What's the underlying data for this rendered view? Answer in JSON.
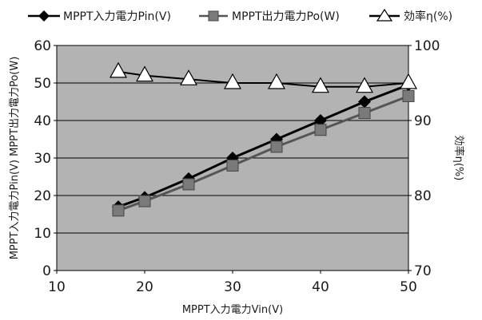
{
  "chart_data": {
    "type": "line",
    "title": "",
    "xlabel": "MPPT入力電力Vin(V)",
    "ylabel_left": "MPPT入力電力Pin(V) MPPT出力電力Po(W)",
    "ylabel_right": "効率η(%)",
    "xlim": [
      10,
      50
    ],
    "ylim_left": [
      0,
      60
    ],
    "ylim_right": [
      70,
      100
    ],
    "x_ticks": [
      "10",
      "20",
      "30",
      "40",
      "50"
    ],
    "y_left_ticks": [
      "0",
      "10",
      "20",
      "30",
      "40",
      "50",
      "60"
    ],
    "y_right_ticks": [
      "70",
      "80",
      "90",
      "100"
    ],
    "grid": true,
    "plot_background": "#b3b3b3",
    "legend_position": "top",
    "series": [
      {
        "name": "MPPT入力電力Pin(V)",
        "axis": "left",
        "marker": "diamond",
        "color": "#000000",
        "x": [
          17,
          20,
          25,
          30,
          35,
          40,
          45,
          50
        ],
        "y": [
          17,
          19.5,
          24.5,
          30,
          35,
          40,
          45,
          49.5
        ]
      },
      {
        "name": "MPPT出力電力Po(W)",
        "axis": "left",
        "marker": "square",
        "color": "#555555",
        "x": [
          17,
          20,
          25,
          30,
          35,
          40,
          45,
          50
        ],
        "y": [
          16,
          18.5,
          23,
          28,
          33,
          37.5,
          42,
          46.5
        ]
      },
      {
        "name": "効率η(%)",
        "axis": "right",
        "marker": "triangle",
        "color": "#000000",
        "x": [
          17,
          20,
          25,
          30,
          35,
          40,
          45,
          50
        ],
        "y": [
          96.5,
          96,
          95.5,
          95,
          95,
          94.5,
          94.5,
          95
        ]
      }
    ]
  }
}
